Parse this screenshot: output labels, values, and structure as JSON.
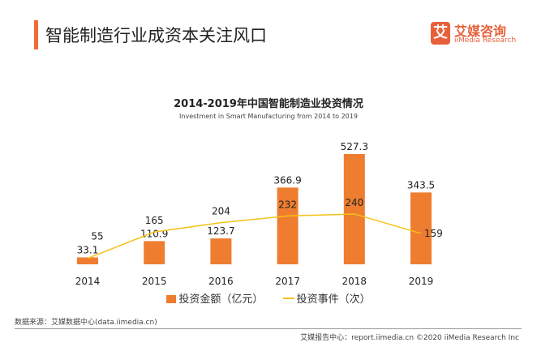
{
  "header": {
    "title": "智能制造行业成资本关注风口",
    "logo_mark": "艾",
    "logo_cn": "艾媒咨询",
    "logo_en": "iiMedia Research"
  },
  "chart_data": {
    "type": "bar+line",
    "title": "2014-2019年中国智能制造业投资情况",
    "subtitle": "Investment in Smart Manufacturing from 2014 to 2019",
    "categories": [
      "2014",
      "2015",
      "2016",
      "2017",
      "2018",
      "2019"
    ],
    "series": [
      {
        "name": "投资金额（亿元）",
        "type": "bar",
        "color": "#ee7d30",
        "values": [
          33.1,
          110.9,
          123.7,
          366.9,
          527.3,
          343.5
        ]
      },
      {
        "name": "投资事件（次）",
        "type": "line",
        "color": "#f5c218",
        "values": [
          55,
          165,
          204,
          232,
          240,
          159
        ]
      }
    ],
    "grid": false,
    "legend": "bottom"
  },
  "footer": {
    "source": "数据来源：艾媒数据中心(data.iimedia.cn)",
    "copyright": "艾媒报告中心：report.iimedia.cn  ©2020  iiMedia Research  Inc"
  }
}
